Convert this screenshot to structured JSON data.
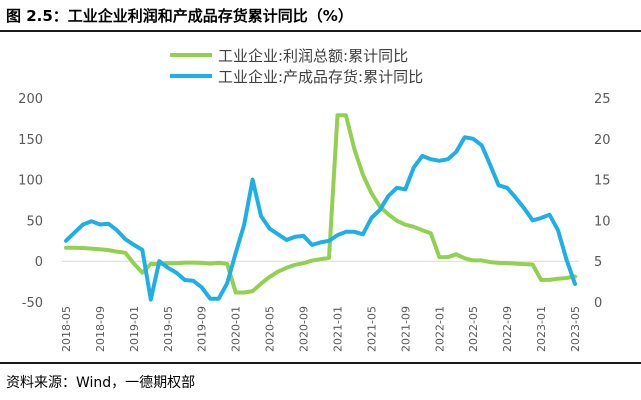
{
  "figure_title": "图 2.5：工业企业利润和产成品存货累计同比（%）",
  "source": "资料来源：Wind，一德期权部",
  "chart_data": {
    "type": "line",
    "title": "图 2.5：工业企业利润和产成品存货累计同比（%）",
    "x": [
      "2018-05",
      "2018-06",
      "2018-07",
      "2018-08",
      "2018-09",
      "2018-10",
      "2018-11",
      "2018-12",
      "2019-01",
      "2019-02",
      "2019-03",
      "2019-04",
      "2019-05",
      "2019-06",
      "2019-07",
      "2019-08",
      "2019-09",
      "2019-10",
      "2019-11",
      "2019-12",
      "2020-01",
      "2020-02",
      "2020-03",
      "2020-04",
      "2020-05",
      "2020-06",
      "2020-07",
      "2020-08",
      "2020-09",
      "2020-10",
      "2020-11",
      "2020-12",
      "2021-01",
      "2021-02",
      "2021-03",
      "2021-04",
      "2021-05",
      "2021-06",
      "2021-07",
      "2021-08",
      "2021-09",
      "2021-10",
      "2021-11",
      "2021-12",
      "2022-01",
      "2022-02",
      "2022-03",
      "2022-04",
      "2022-05",
      "2022-06",
      "2022-07",
      "2022-08",
      "2022-09",
      "2022-10",
      "2022-11",
      "2022-12",
      "2023-01",
      "2023-02",
      "2023-03",
      "2023-04",
      "2023-05"
    ],
    "x_tick_labels": [
      "2018-05",
      "2018-09",
      "2019-01",
      "2019-05",
      "2019-09",
      "2020-01",
      "2020-05",
      "2020-09",
      "2021-01",
      "2021-05",
      "2021-09",
      "2022-01",
      "2022-05",
      "2022-09",
      "2023-01",
      "2023-05"
    ],
    "y_left": {
      "ticks": [
        "200",
        "150",
        "100",
        "50",
        "0",
        "-50"
      ],
      "min": -50,
      "max": 200
    },
    "y_right": {
      "ticks": [
        "25",
        "20",
        "15",
        "10",
        "5",
        "0"
      ],
      "min": 0,
      "max": 25
    },
    "legend_placement": "top-center",
    "grid": false,
    "series": [
      {
        "name": "工业企业:利润总额:累计同比",
        "axis": "left",
        "color": "#92D050",
        "values": [
          16.5,
          16.5,
          16.2,
          15.5,
          14.7,
          13.6,
          11.8,
          10.3,
          -3,
          -14,
          -3.3,
          -3.4,
          -2.3,
          -2.4,
          -1.7,
          -1.7,
          -2.1,
          -2.9,
          -2.1,
          -3.3,
          -38.3,
          -38.3,
          -36.7,
          -27.4,
          -19.3,
          -12.8,
          -8.1,
          -4.4,
          -2.4,
          0.7,
          2.4,
          4.1,
          178.9,
          178.9,
          137.3,
          106,
          83.4,
          66.9,
          57.3,
          49.5,
          44.7,
          42.2,
          38,
          34.3,
          5,
          5,
          8.5,
          3.5,
          1,
          1,
          -1.1,
          -2.1,
          -2.3,
          -3,
          -3.6,
          -4,
          -22.9,
          -22.9,
          -21.4,
          -20.6,
          -18.8
        ]
      },
      {
        "name": "工业企业:产成品存货:累计同比",
        "axis": "right",
        "color": "#1EAFE6",
        "values": [
          7.5,
          8.5,
          9.5,
          9.9,
          9.5,
          9.6,
          8.8,
          7.7,
          7,
          6.4,
          0.3,
          5,
          4.2,
          3.6,
          2.7,
          2.6,
          1.8,
          0.4,
          0.4,
          2.3,
          6,
          9.5,
          15,
          10.5,
          9,
          8.3,
          7.6,
          8,
          8.1,
          7,
          7.3,
          7.5,
          8.2,
          8.6,
          8.6,
          8.3,
          10.3,
          11.3,
          13,
          14,
          13.8,
          16.5,
          17.9,
          17.5,
          17.3,
          17.5,
          18.4,
          20.2,
          20,
          19.2,
          16.8,
          14.3,
          14,
          12.8,
          11.5,
          10,
          10.3,
          10.7,
          8.8,
          5.2,
          2.2
        ]
      }
    ]
  }
}
